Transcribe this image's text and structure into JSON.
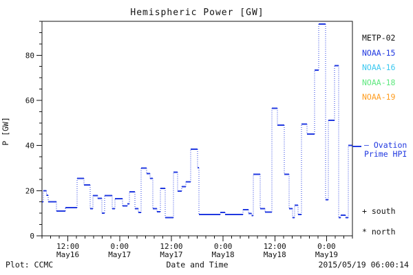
{
  "title": "Hemispheric Power [GW]",
  "colors": {
    "axis": "#111111",
    "line": "#2038e0",
    "metp02": "#111111",
    "noaa15": "#2038e0",
    "noaa16": "#3bc8f0",
    "noaa18": "#5fe87f",
    "noaa19": "#ff9c1e"
  },
  "legend": {
    "satellites": [
      {
        "label": "METP-02",
        "color": "#111111"
      },
      {
        "label": "NOAA-15",
        "color": "#2038e0"
      },
      {
        "label": "NOAA-16",
        "color": "#3bc8f0"
      },
      {
        "label": "NOAA-18",
        "color": "#5fe87f"
      },
      {
        "label": "NOAA-19",
        "color": "#ff9c1e"
      }
    ],
    "ovation": {
      "line1": "– Ovation",
      "line2": "Prime HPI",
      "color": "#2038e0"
    },
    "markers": {
      "south_symbol": "+",
      "south_label": "south",
      "north_symbol": "*",
      "north_label": "north"
    }
  },
  "footer": {
    "credit": "Plot: CCMC",
    "xlabel": "Date and Time",
    "timestamp": "2015/05/19 06:00:14"
  },
  "chart_data": {
    "type": "line",
    "subtype": "step",
    "style_note": "horizontal steps solid, vertical connectors dotted",
    "title": "Hemispheric Power [GW]",
    "xlabel": "Date and Time",
    "ylabel": "P [GW]",
    "line_color": "#2038e0",
    "x_unit": "hours since 2015-05-16 06:00 UT",
    "xlim": [
      0,
      72
    ],
    "ylim": [
      0,
      95
    ],
    "y_major_ticks": [
      0,
      20,
      40,
      60,
      80
    ],
    "y_minor_step": 5,
    "x_minor_step_hours": 2,
    "x_major_ticks": [
      {
        "hour": 6,
        "time": "12:00",
        "date": "May16"
      },
      {
        "hour": 18,
        "time": "0:00",
        "date": "May17"
      },
      {
        "hour": 30,
        "time": "12:00",
        "date": "May17"
      },
      {
        "hour": 42,
        "time": "0:00",
        "date": "May18"
      },
      {
        "hour": 54,
        "time": "12:00",
        "date": "May18"
      },
      {
        "hour": 66,
        "time": "0:00",
        "date": "May19"
      }
    ],
    "step_start_hours": [
      0,
      0.32,
      1.04,
      1.44,
      3.35,
      5.43,
      8.14,
      9.74,
      11.17,
      11.81,
      12.93,
      13.89,
      14.53,
      16.28,
      16.92,
      18.68,
      19.8,
      20.27,
      21.55,
      22.35,
      22.99,
      24.27,
      25.06,
      25.7,
      26.66,
      27.46,
      28.58,
      30.49,
      31.45,
      32.41,
      33.37,
      34.48,
      36.08,
      36.4,
      41.35,
      42.47,
      46.6,
      47.9,
      48.6,
      49.01,
      50.61,
      51.72,
      53.32,
      54.6,
      56.19,
      57.31,
      58.11,
      58.59,
      59.39,
      60.18,
      61.46,
      63.22,
      64.18,
      65.77,
      66.41,
      67.85,
      68.81,
      69.29,
      70.4,
      71.04
    ],
    "power_gw": [
      15,
      20,
      18,
      15,
      11,
      12.5,
      25.5,
      22.5,
      12,
      17.8,
      16.6,
      10,
      17.8,
      12,
      16.5,
      13.2,
      14.2,
      19.5,
      12,
      10.3,
      30,
      27.5,
      25.4,
      12.1,
      10.6,
      21,
      8,
      28.2,
      19.8,
      21.8,
      23.9,
      38.3,
      30.1,
      9.5,
      10.4,
      9.5,
      11.5,
      9.9,
      9,
      27.2,
      12,
      10.5,
      56.5,
      49,
      27.2,
      12.1,
      8,
      13.6,
      9.5,
      49.5,
      45,
      73.4,
      93.8,
      16,
      51.1,
      75.3,
      8,
      9.2,
      8,
      40
    ],
    "last_step_end_hour": 71.9
  }
}
